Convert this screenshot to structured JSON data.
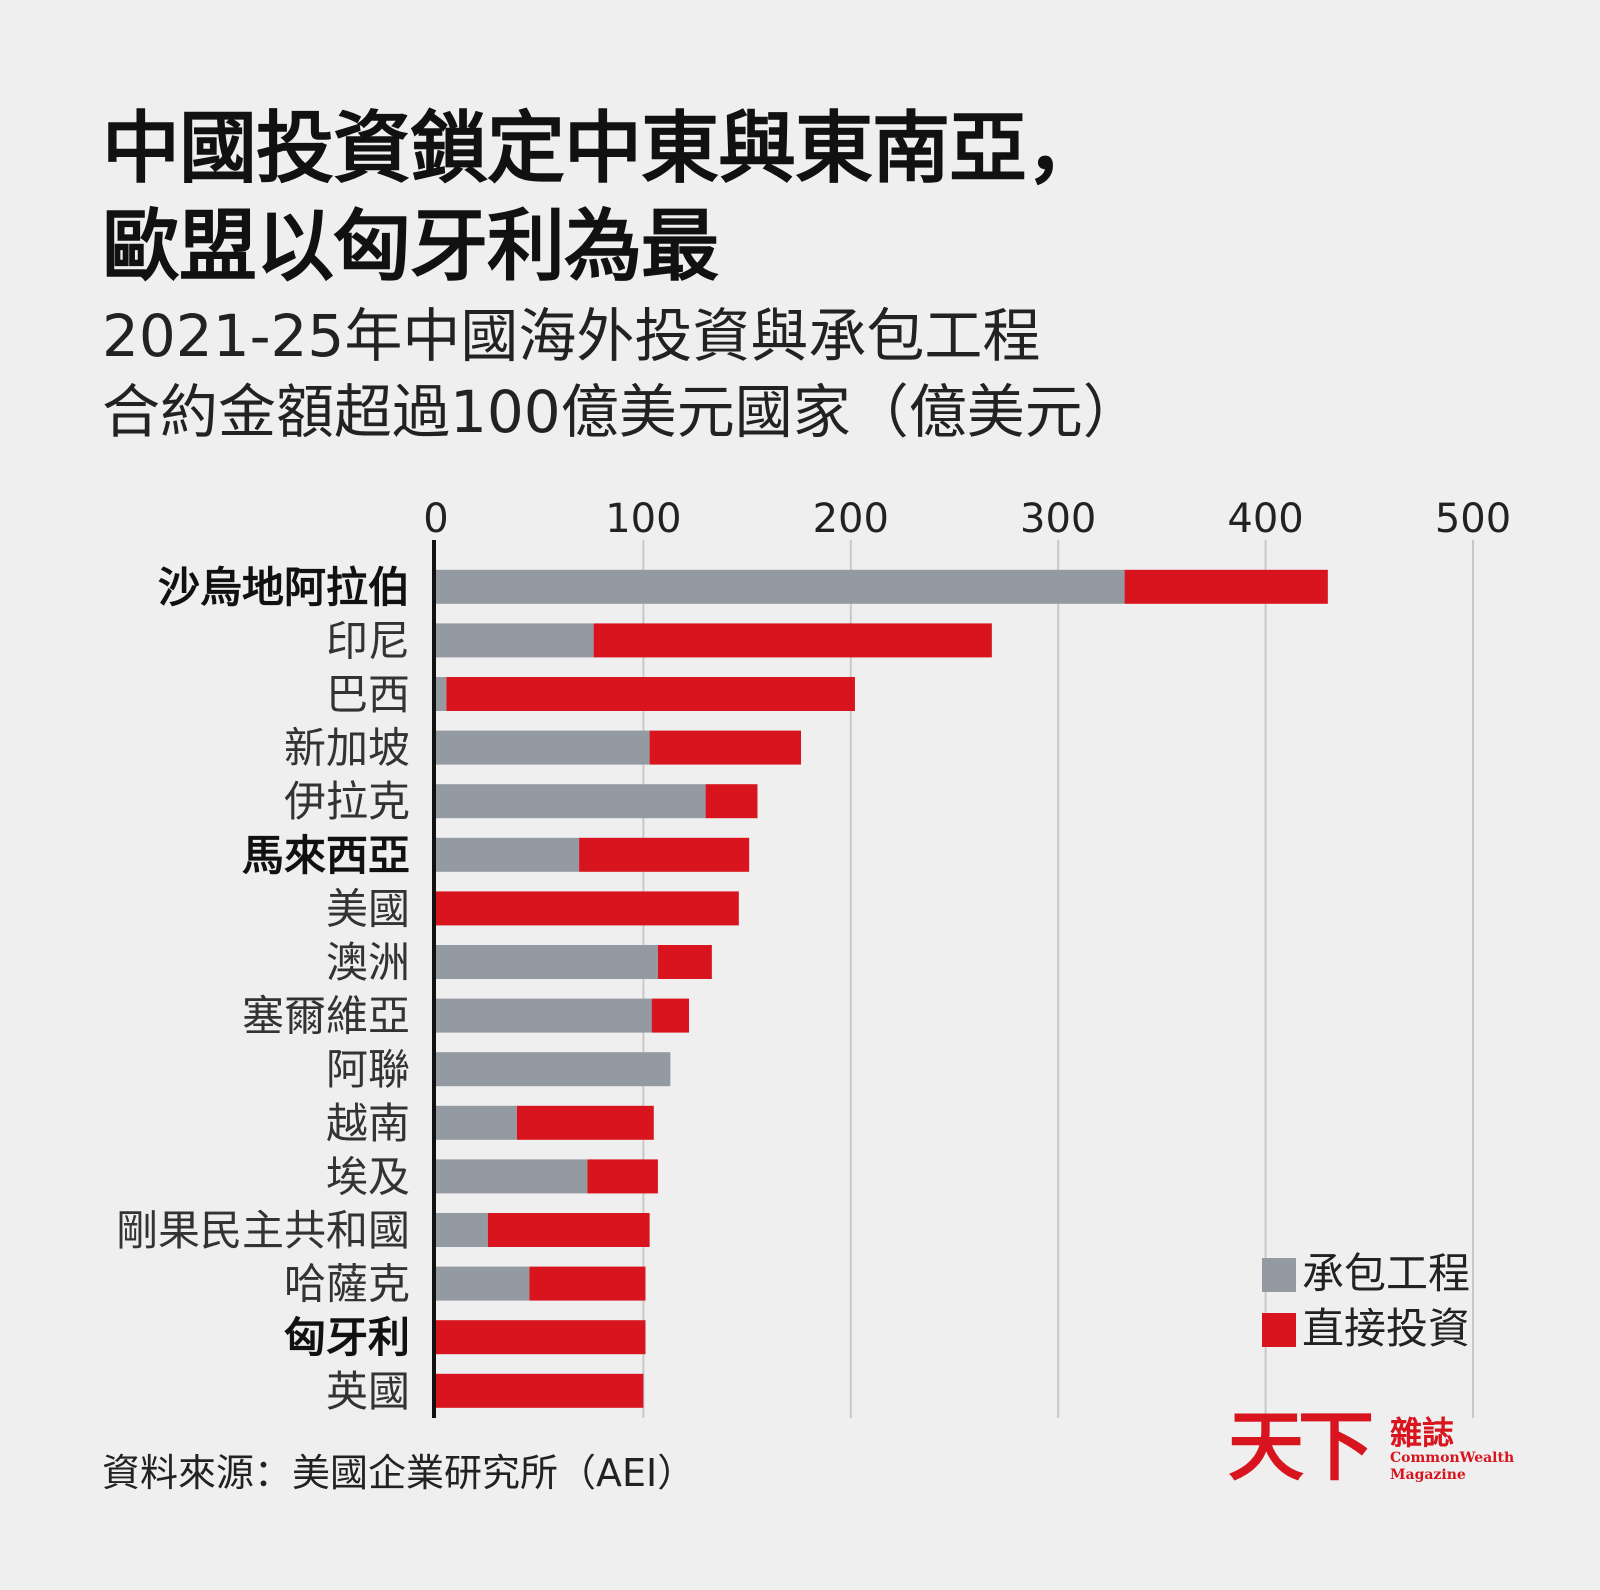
{
  "title_lines": [
    "中國投資鎖定中東與東南亞，",
    "歐盟以匈牙利為最"
  ],
  "subtitle_lines": [
    "2021-25年中國海外投資與承包工程",
    "合約金額超過100億美元國家（億美元）"
  ],
  "source": "資料來源：美國企業研究所（AEI）",
  "logo": {
    "mark": "天下",
    "sub": "雜誌",
    "en_lines": [
      "CommonWealth",
      "Magazine"
    ]
  },
  "colors": {
    "contract": "#939aa2",
    "investment": "#d8141e",
    "grid": "#c8c8c8",
    "axis": "#111111",
    "background": "#efefef"
  },
  "chart_data": {
    "type": "bar",
    "orientation": "horizontal",
    "stacked": true,
    "title": "中國投資鎖定中東與東南亞，歐盟以匈牙利為最",
    "subtitle": "2021-25年中國海外投資與承包工程合約金額超過100億美元國家（億美元）",
    "xlim": [
      0,
      500
    ],
    "x_ticks": [
      0,
      100,
      200,
      300,
      400,
      500
    ],
    "grid": true,
    "legend_position": "bottom-right",
    "categories": [
      "沙烏地阿拉伯",
      "印尼",
      "巴西",
      "新加坡",
      "伊拉克",
      "馬來西亞",
      "美國",
      "澳洲",
      "塞爾維亞",
      "阿聯",
      "越南",
      "埃及",
      "剛果民主共和國",
      "哈薩克",
      "匈牙利",
      "英國"
    ],
    "bold_categories": [
      "沙烏地阿拉伯",
      "馬來西亞",
      "匈牙利"
    ],
    "series": [
      {
        "name": "承包工程",
        "color": "#939aa2",
        "values": [
          332,
          76,
          5,
          103,
          130,
          69,
          0,
          107,
          104,
          113,
          39,
          73,
          25,
          45,
          0,
          0
        ]
      },
      {
        "name": "直接投資",
        "color": "#d8141e",
        "values": [
          98,
          192,
          197,
          73,
          25,
          82,
          146,
          26,
          18,
          0,
          66,
          34,
          78,
          56,
          101,
          100
        ]
      }
    ]
  }
}
